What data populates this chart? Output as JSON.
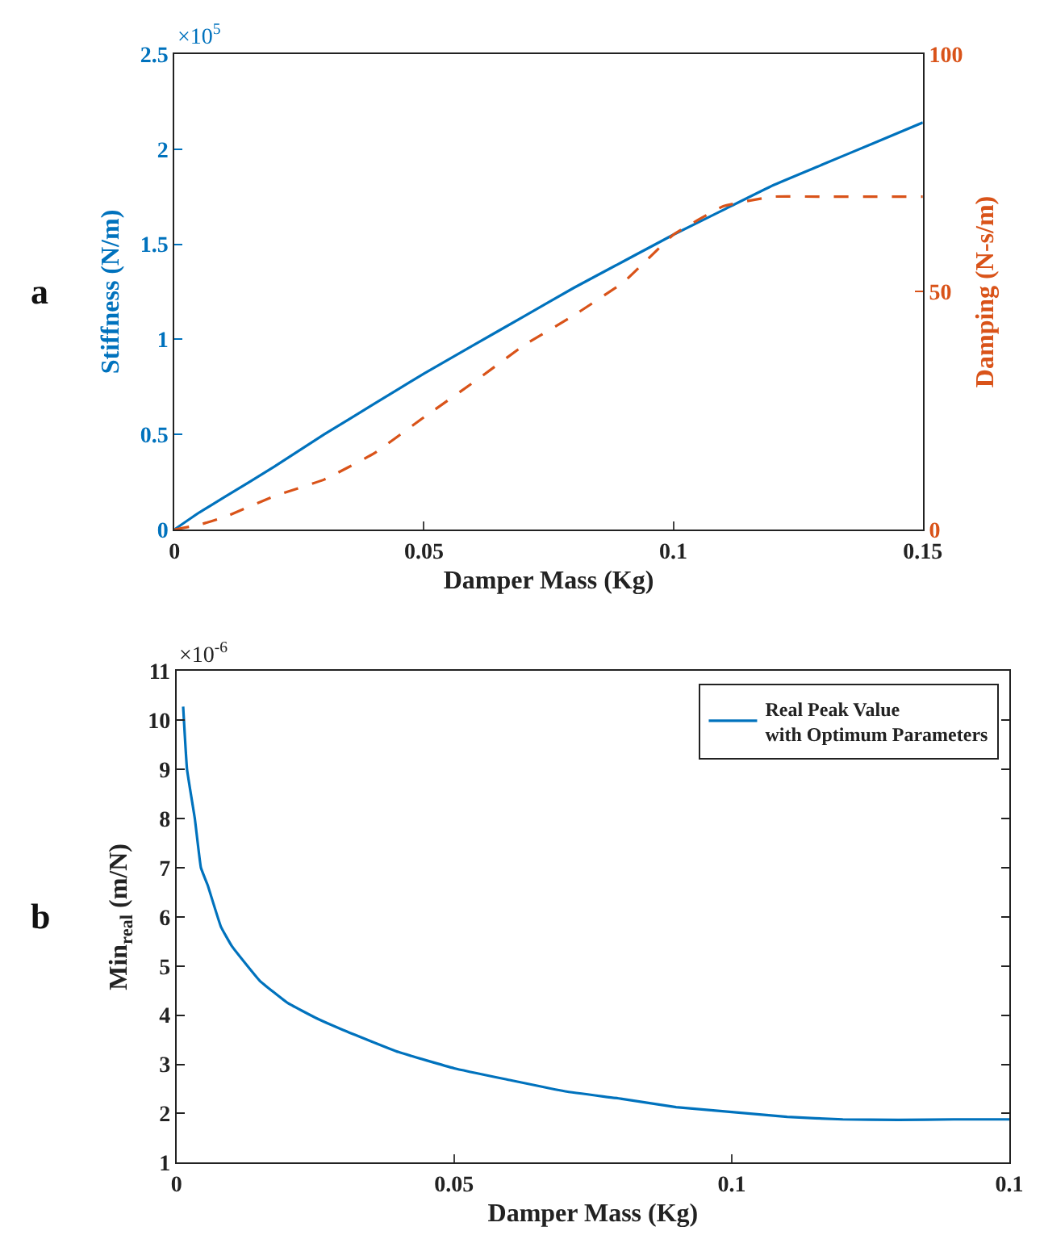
{
  "chart_data": [
    {
      "type": "line",
      "title": "a",
      "xlabel": "Damper Mass (Kg)",
      "ylabel": "Stiffness (N/m)",
      "y2label": "Damping (N-s/m)",
      "annotations": [
        "×10$^{5}$"
      ],
      "x": [
        0,
        0.005,
        0.01,
        0.02,
        0.03,
        0.04,
        0.05,
        0.06,
        0.07,
        0.08,
        0.09,
        0.095,
        0.1,
        0.11,
        0.12,
        0.13,
        0.14,
        0.15
      ],
      "series": [
        {
          "color": "#0072bd",
          "line_style": "solid",
          "values": [
            0,
            0.09,
            0.17,
            0.33,
            0.5,
            0.66,
            0.82,
            0.97,
            1.12,
            1.27,
            1.41,
            1.48,
            1.55,
            1.68,
            1.81,
            1.92,
            2.03,
            2.14
          ]
        },
        {
          "color": "#d95319",
          "line_style": "dashed",
          "axis": "y2",
          "values": [
            0,
            1,
            2.6,
            7,
            10.5,
            16,
            23.6,
            31,
            38.7,
            45,
            52,
            57,
            62,
            68,
            70,
            70,
            70,
            70
          ]
        }
      ],
      "xlim": [
        0,
        0.15
      ],
      "xticks": [
        0,
        0.05,
        0.1,
        0.15
      ],
      "ylim": [
        0,
        2.5
      ],
      "yticks": [
        0,
        0.5,
        1,
        1.5,
        2,
        2.5
      ],
      "y2lim": [
        0,
        100
      ],
      "y2ticks": [
        0,
        50,
        100
      ]
    },
    {
      "type": "line",
      "title": "b",
      "xlabel": "Damper Mass (Kg)",
      "ylabel": "Min$_{real}$ (m/N)",
      "annotations": [
        "×10$^{-6}$"
      ],
      "x": [
        0.0012,
        0.0019,
        0.0033,
        0.0044,
        0.0056,
        0.008,
        0.01,
        0.015,
        0.02,
        0.025,
        0.03,
        0.04,
        0.05,
        0.06,
        0.07,
        0.08,
        0.09,
        0.1,
        0.11,
        0.12,
        0.13,
        0.14,
        0.15
      ],
      "series": [
        {
          "name": "Real Peak Value\nwith Optimum Parameters",
          "color": "#0072bd",
          "line_style": "solid",
          "values": [
            10.28,
            9.0,
            8.0,
            7.0,
            6.65,
            5.8,
            5.4,
            4.7,
            4.25,
            3.95,
            3.7,
            3.25,
            2.92,
            2.68,
            2.45,
            2.3,
            2.13,
            2.03,
            1.93,
            1.88,
            1.87,
            1.88,
            1.88
          ]
        }
      ],
      "xlim": [
        0,
        0.15
      ],
      "xticks": [
        0,
        0.05,
        0.1,
        {
          "value": 0.15,
          "label": "0.1"
        }
      ],
      "ylim": [
        1,
        11
      ],
      "yticks": [
        1,
        2,
        3,
        4,
        5,
        6,
        7,
        8,
        9,
        10,
        11
      ],
      "legend": "top right"
    }
  ]
}
